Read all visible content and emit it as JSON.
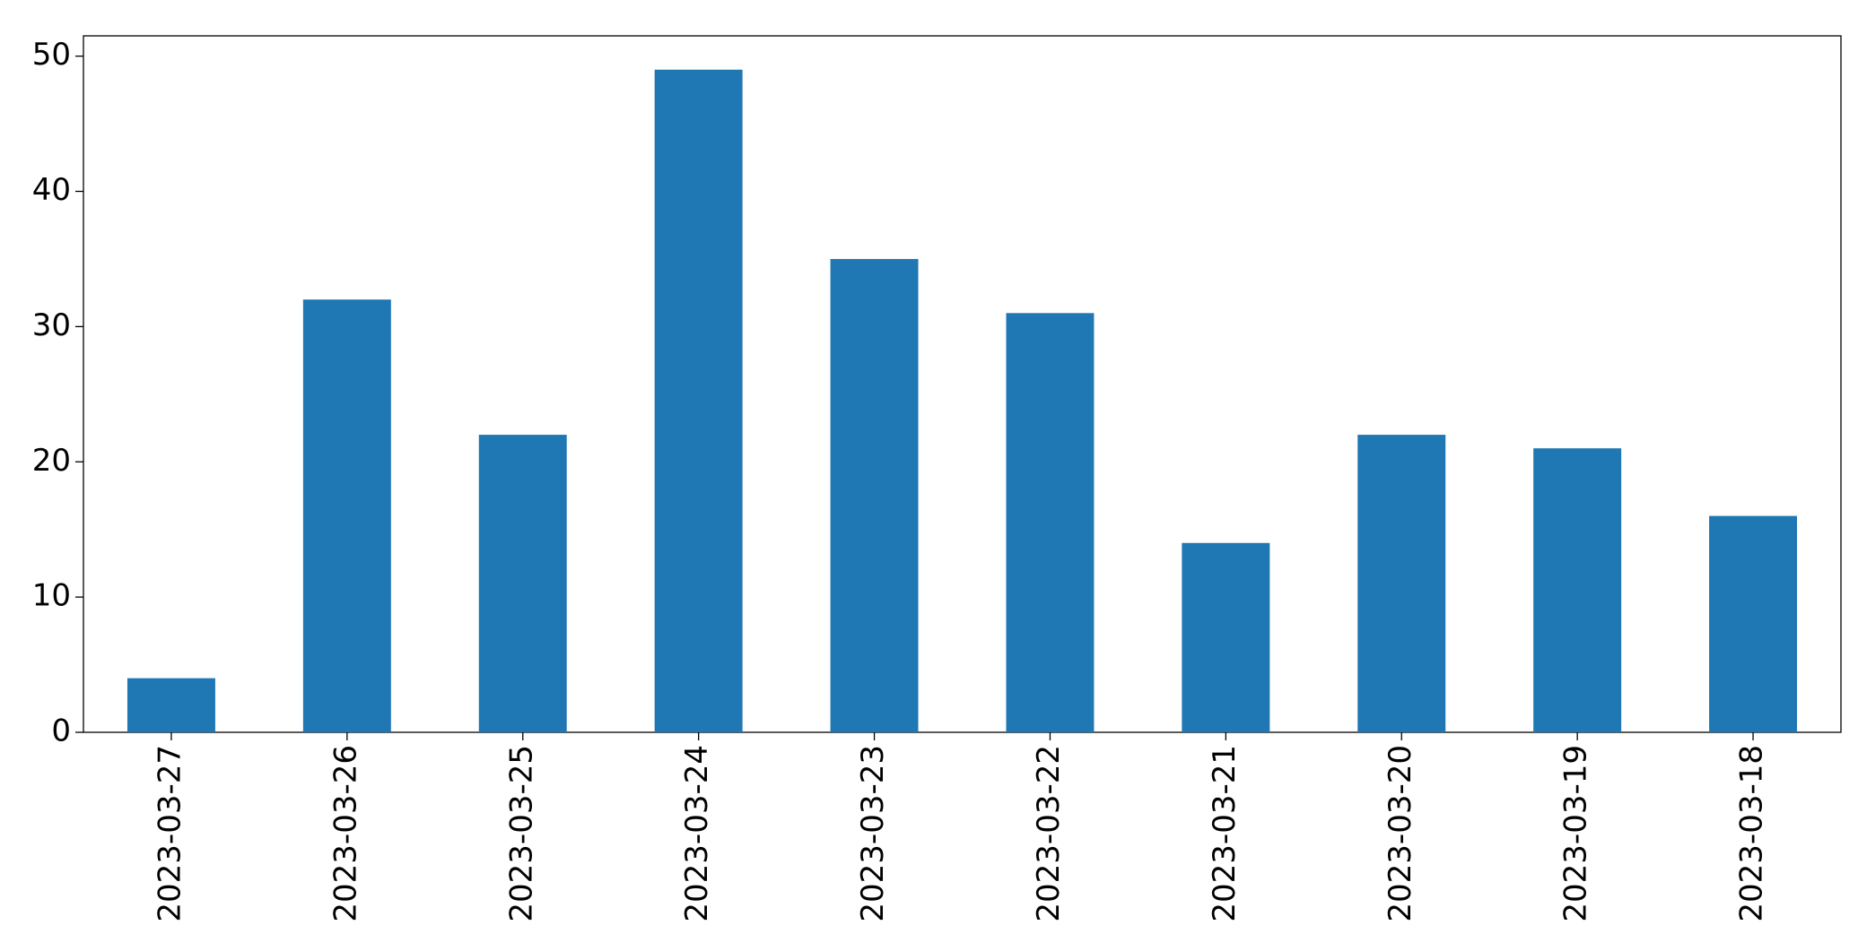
{
  "chart_data": {
    "type": "bar",
    "categories": [
      "2023-03-27",
      "2023-03-26",
      "2023-03-25",
      "2023-03-24",
      "2023-03-23",
      "2023-03-22",
      "2023-03-21",
      "2023-03-20",
      "2023-03-19",
      "2023-03-18"
    ],
    "values": [
      4,
      32,
      22,
      49,
      35,
      31,
      14,
      22,
      21,
      16
    ],
    "color": "#1f77b4",
    "ylim": [
      0,
      51.5
    ],
    "yticks": [
      0,
      10,
      20,
      30,
      40,
      50
    ],
    "grid": false
  }
}
